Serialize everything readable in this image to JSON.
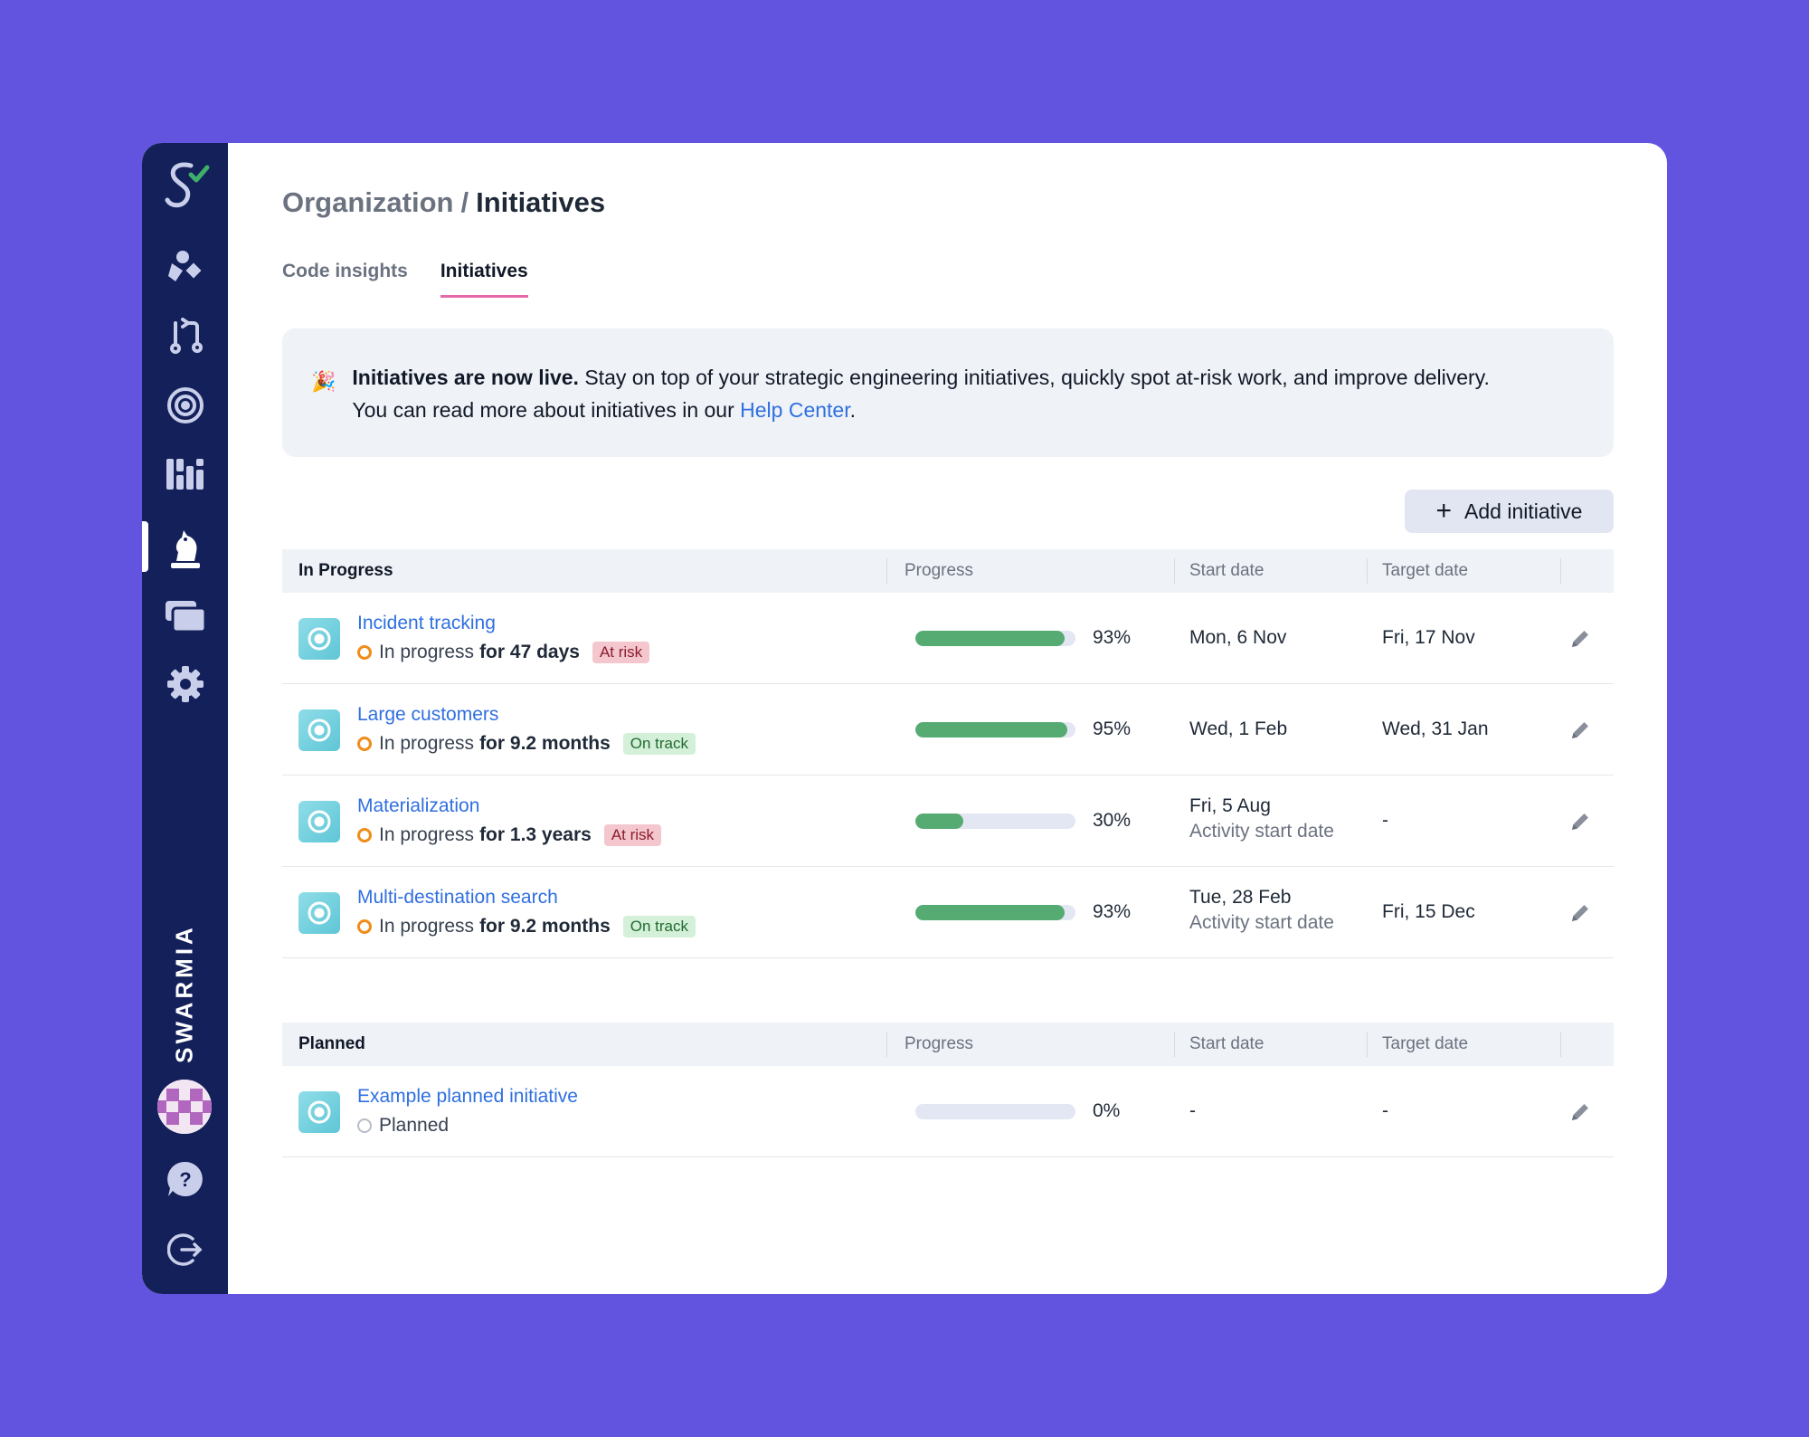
{
  "breadcrumb": {
    "parent": "Organization",
    "separator": "/",
    "current": "Initiatives"
  },
  "tabs": [
    {
      "label": "Code insights",
      "active": false
    },
    {
      "label": "Initiatives",
      "active": true
    }
  ],
  "banner": {
    "icon": "party-popper-icon",
    "bold": "Initiatives are now live.",
    "text": " Stay on top of your strategic engineering initiatives, quickly spot at-risk work, and improve delivery.",
    "line2_prefix": "You can read more about initiatives in our ",
    "link": "Help Center",
    "line2_suffix": "."
  },
  "add_button": {
    "label": "Add initiative",
    "icon": "plus-icon"
  },
  "sidebar": {
    "brand": "SWARMIA",
    "items": [
      {
        "icon": "swarmia-logo-icon"
      },
      {
        "icon": "shapes-icon"
      },
      {
        "icon": "pull-request-icon"
      },
      {
        "icon": "target-icon"
      },
      {
        "icon": "dashboard-icon"
      },
      {
        "icon": "chess-knight-icon",
        "active": true
      },
      {
        "icon": "cards-icon"
      },
      {
        "icon": "gear-icon"
      }
    ],
    "bottom": [
      {
        "icon": "avatar"
      },
      {
        "icon": "help-icon"
      },
      {
        "icon": "logout-icon"
      }
    ]
  },
  "columns": {
    "progress": "Progress",
    "start": "Start date",
    "target": "Target date"
  },
  "in_progress": {
    "group_label": "In Progress",
    "rows": [
      {
        "title": "Incident tracking",
        "status": "In progress",
        "duration": "for 47 days",
        "badge": "At risk",
        "badge_type": "risk",
        "progress": 0.93,
        "pct": "93%",
        "start": "Mon, 6 Nov",
        "start_sub": "",
        "target": "Fri, 17 Nov"
      },
      {
        "title": "Large customers",
        "status": "In progress",
        "duration": "for 9.2 months",
        "badge": "On track",
        "badge_type": "track",
        "progress": 0.95,
        "pct": "95%",
        "start": "Wed, 1 Feb",
        "start_sub": "",
        "target": "Wed, 31 Jan"
      },
      {
        "title": "Materialization",
        "status": "In progress",
        "duration": "for 1.3 years",
        "badge": "At risk",
        "badge_type": "risk",
        "progress": 0.3,
        "pct": "30%",
        "start": "Fri, 5 Aug",
        "start_sub": "Activity start date",
        "target": "-"
      },
      {
        "title": "Multi-destination search",
        "status": "In progress",
        "duration": "for 9.2 months",
        "badge": "On track",
        "badge_type": "track",
        "progress": 0.93,
        "pct": "93%",
        "start": "Tue, 28 Feb",
        "start_sub": "Activity start date",
        "target": "Fri, 15 Dec"
      }
    ]
  },
  "planned": {
    "group_label": "Planned",
    "rows": [
      {
        "title": "Example planned initiative",
        "status": "Planned",
        "duration": "",
        "badge": "",
        "badge_type": "",
        "progress": 0,
        "pct": "0%",
        "start": "-",
        "start_sub": "",
        "target": "-"
      }
    ]
  },
  "colors": {
    "background": "#6354e0",
    "sidebar": "#13205a",
    "link": "#2f6fe0",
    "progress": "#55ab72",
    "tab_underline": "#e26aa6"
  }
}
